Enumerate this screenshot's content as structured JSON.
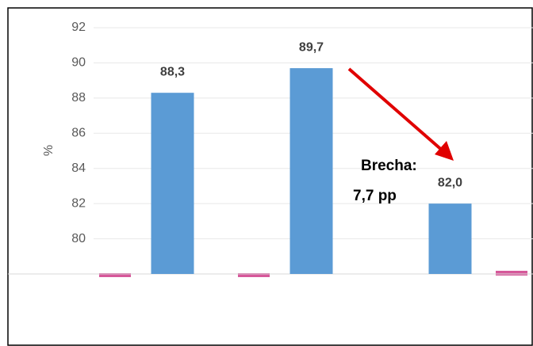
{
  "chart_data": {
    "type": "bar",
    "y_label": "%",
    "categories": [
      null,
      null,
      null
    ],
    "values": [
      88.3,
      89.7,
      82.0
    ],
    "value_labels": [
      "88,3",
      "89,7",
      "82,0"
    ],
    "color": "#5b9bd5",
    "ylim": [
      78,
      92
    ],
    "yticks": [
      80,
      82,
      84,
      86,
      88,
      90,
      92
    ],
    "grid": true,
    "annotation": [
      "Brecha:",
      "7,7 pp"
    ]
  }
}
